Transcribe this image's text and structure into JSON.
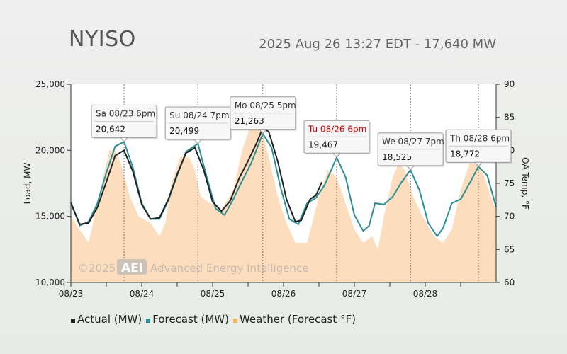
{
  "header": {
    "title": "NYISO",
    "subtitle": "2025 Aug 26 13:27 EDT - 17,640 MW"
  },
  "watermark": "©2025 AEI Advanced Energy Intelligence",
  "colors": {
    "actual": "#222222",
    "forecast": "#2a8f95",
    "weather": "#fbd3a8",
    "highlight": "#cc0000"
  },
  "chart_data": {
    "type": "line",
    "x_start": "2025-08-23 00:00",
    "x_end": "2025-08-29 00:00",
    "x_ticks": [
      "08/23",
      "08/24",
      "08/25",
      "08/26",
      "08/27",
      "08/28"
    ],
    "ylabel": "Load, MW",
    "ylabel_right": "OA Temp, °F",
    "ylim": [
      10000,
      25000
    ],
    "y_ticks": [
      "10,000",
      "15,000",
      "20,000",
      "25,000"
    ],
    "ylim_right": [
      60,
      90
    ],
    "y_ticks_right": [
      "60",
      "65",
      "70",
      "75",
      "80",
      "85",
      "90"
    ],
    "grid": "vertical dashed at peaks",
    "legend": [
      "Actual (MW)",
      "Forecast (MW)",
      "Weather (Forecast °F)"
    ],
    "series": [
      {
        "name": "Actual (MW)",
        "points": [
          [
            "2025-08-23 00:00",
            16000
          ],
          [
            "2025-08-23 03:00",
            14400
          ],
          [
            "2025-08-23 06:00",
            14500
          ],
          [
            "2025-08-23 09:00",
            15700
          ],
          [
            "2025-08-23 12:00",
            17600
          ],
          [
            "2025-08-23 15:00",
            19600
          ],
          [
            "2025-08-23 18:00",
            20000
          ],
          [
            "2025-08-23 21:00",
            18400
          ],
          [
            "2025-08-24 00:00",
            15900
          ],
          [
            "2025-08-24 03:00",
            14800
          ],
          [
            "2025-08-24 06:00",
            14900
          ],
          [
            "2025-08-24 09:00",
            16300
          ],
          [
            "2025-08-24 12:00",
            18200
          ],
          [
            "2025-08-24 15:00",
            19800
          ],
          [
            "2025-08-24 18:00",
            20200
          ],
          [
            "2025-08-24 21:00",
            18500
          ],
          [
            "2025-08-25 00:00",
            16100
          ],
          [
            "2025-08-25 03:00",
            15400
          ],
          [
            "2025-08-25 06:00",
            16200
          ],
          [
            "2025-08-25 09:00",
            17900
          ],
          [
            "2025-08-25 12:00",
            19200
          ],
          [
            "2025-08-25 15:00",
            20600
          ],
          [
            "2025-08-25 17:00",
            21700
          ],
          [
            "2025-08-25 19:00",
            21400
          ],
          [
            "2025-08-25 22:00",
            19200
          ],
          [
            "2025-08-26 01:00",
            16300
          ],
          [
            "2025-08-26 04:00",
            14600
          ],
          [
            "2025-08-26 06:00",
            14700
          ],
          [
            "2025-08-26 09:00",
            16300
          ],
          [
            "2025-08-26 11:00",
            16600
          ],
          [
            "2025-08-26 13:00",
            17600
          ]
        ]
      },
      {
        "name": "Forecast (MW)",
        "points": [
          [
            "2025-08-23 00:00",
            16100
          ],
          [
            "2025-08-23 03:00",
            14300
          ],
          [
            "2025-08-23 06:00",
            14600
          ],
          [
            "2025-08-23 09:00",
            16000
          ],
          [
            "2025-08-23 12:00",
            18300
          ],
          [
            "2025-08-23 15:00",
            20300
          ],
          [
            "2025-08-23 18:00",
            20642
          ],
          [
            "2025-08-23 21:00",
            18700
          ],
          [
            "2025-08-24 00:00",
            16000
          ],
          [
            "2025-08-24 03:00",
            14800
          ],
          [
            "2025-08-24 06:00",
            14800
          ],
          [
            "2025-08-24 09:00",
            16200
          ],
          [
            "2025-08-24 12:00",
            18100
          ],
          [
            "2025-08-24 15:00",
            19900
          ],
          [
            "2025-08-24 19:00",
            20499
          ],
          [
            "2025-08-24 22:00",
            18000
          ],
          [
            "2025-08-25 01:00",
            15600
          ],
          [
            "2025-08-25 04:00",
            15100
          ],
          [
            "2025-08-25 07:00",
            16300
          ],
          [
            "2025-08-25 10:00",
            17700
          ],
          [
            "2025-08-25 13:00",
            19000
          ],
          [
            "2025-08-25 17:00",
            21263
          ],
          [
            "2025-08-25 20:00",
            20200
          ],
          [
            "2025-08-25 23:00",
            17200
          ],
          [
            "2025-08-26 02:00",
            14800
          ],
          [
            "2025-08-26 05:00",
            14400
          ],
          [
            "2025-08-26 08:00",
            16000
          ],
          [
            "2025-08-26 11:00",
            16400
          ],
          [
            "2025-08-26 14:00",
            17400
          ],
          [
            "2025-08-26 18:00",
            19467
          ],
          [
            "2025-08-26 21:00",
            18000
          ],
          [
            "2025-08-27 00:00",
            15100
          ],
          [
            "2025-08-27 03:00",
            13900
          ],
          [
            "2025-08-27 05:00",
            14300
          ],
          [
            "2025-08-27 07:00",
            16000
          ],
          [
            "2025-08-27 10:00",
            15900
          ],
          [
            "2025-08-27 13:00",
            16500
          ],
          [
            "2025-08-27 16:00",
            17600
          ],
          [
            "2025-08-27 19:00",
            18525
          ],
          [
            "2025-08-27 22:00",
            17000
          ],
          [
            "2025-08-28 01:00",
            14500
          ],
          [
            "2025-08-28 04:00",
            13500
          ],
          [
            "2025-08-28 06:00",
            14100
          ],
          [
            "2025-08-28 09:00",
            16000
          ],
          [
            "2025-08-28 12:00",
            16300
          ],
          [
            "2025-08-28 15:00",
            17500
          ],
          [
            "2025-08-28 18:00",
            18772
          ],
          [
            "2025-08-28 21:00",
            18100
          ],
          [
            "2025-08-29 00:00",
            15700
          ]
        ]
      },
      {
        "name": "Weather (Forecast °F)",
        "points": [
          [
            "2025-08-23 00:00",
            70
          ],
          [
            "2025-08-23 03:00",
            68
          ],
          [
            "2025-08-23 06:00",
            66
          ],
          [
            "2025-08-23 09:00",
            72
          ],
          [
            "2025-08-23 11:00",
            76
          ],
          [
            "2025-08-23 13:00",
            80
          ],
          [
            "2025-08-23 15:00",
            80
          ],
          [
            "2025-08-23 17:00",
            78
          ],
          [
            "2025-08-23 20:00",
            73
          ],
          [
            "2025-08-23 23:00",
            70
          ],
          [
            "2025-08-24 03:00",
            69
          ],
          [
            "2025-08-24 06:00",
            67
          ],
          [
            "2025-08-24 08:00",
            69
          ],
          [
            "2025-08-24 10:00",
            75
          ],
          [
            "2025-08-24 13:00",
            79
          ],
          [
            "2025-08-24 16:00",
            79
          ],
          [
            "2025-08-24 18:00",
            77
          ],
          [
            "2025-08-24 20:00",
            73
          ],
          [
            "2025-08-24 23:00",
            72
          ],
          [
            "2025-08-25 03:00",
            71
          ],
          [
            "2025-08-25 07:00",
            74
          ],
          [
            "2025-08-25 10:00",
            80
          ],
          [
            "2025-08-25 13:00",
            84
          ],
          [
            "2025-08-25 16:00",
            84
          ],
          [
            "2025-08-25 19:00",
            79
          ],
          [
            "2025-08-25 22:00",
            73
          ],
          [
            "2025-08-26 01:00",
            69
          ],
          [
            "2025-08-26 04:00",
            66
          ],
          [
            "2025-08-26 08:00",
            66
          ],
          [
            "2025-08-26 12:00",
            73
          ],
          [
            "2025-08-26 15:00",
            77
          ],
          [
            "2025-08-26 18:00",
            76
          ],
          [
            "2025-08-26 21:00",
            72
          ],
          [
            "2025-08-27 00:00",
            68
          ],
          [
            "2025-08-27 03:00",
            66
          ],
          [
            "2025-08-27 06:00",
            67
          ],
          [
            "2025-08-27 08:00",
            65
          ],
          [
            "2025-08-27 10:00",
            70
          ],
          [
            "2025-08-27 13:00",
            76
          ],
          [
            "2025-08-27 15:00",
            78
          ],
          [
            "2025-08-27 17:00",
            77
          ],
          [
            "2025-08-27 20:00",
            73
          ],
          [
            "2025-08-27 23:00",
            70
          ],
          [
            "2025-08-28 03:00",
            67
          ],
          [
            "2025-08-28 06:00",
            66
          ],
          [
            "2025-08-28 09:00",
            68
          ],
          [
            "2025-08-28 12:00",
            74
          ],
          [
            "2025-08-28 15:00",
            78
          ],
          [
            "2025-08-28 18:00",
            78
          ],
          [
            "2025-08-28 20:00",
            76
          ],
          [
            "2025-08-28 23:00",
            72
          ],
          [
            "2025-08-29 00:00",
            71
          ]
        ]
      }
    ],
    "annotations": [
      {
        "label": "Sa 08/23 6pm",
        "value": "20,642",
        "x": "2025-08-23 18:00",
        "y": 20642,
        "highlight": false
      },
      {
        "label": "Su 08/24 7pm",
        "value": "20,499",
        "x": "2025-08-24 19:00",
        "y": 20499,
        "highlight": false
      },
      {
        "label": "Mo 08/25 5pm",
        "value": "21,263",
        "x": "2025-08-25 17:00",
        "y": 21263,
        "highlight": false
      },
      {
        "label": "Tu 08/26 6pm",
        "value": "19,467",
        "x": "2025-08-26 18:00",
        "y": 19467,
        "highlight": true
      },
      {
        "label": "We 08/27 7pm",
        "value": "18,525",
        "x": "2025-08-27 19:00",
        "y": 18525,
        "highlight": false
      },
      {
        "label": "Th 08/28 6pm",
        "value": "18,772",
        "x": "2025-08-28 18:00",
        "y": 18772,
        "highlight": false
      }
    ]
  }
}
